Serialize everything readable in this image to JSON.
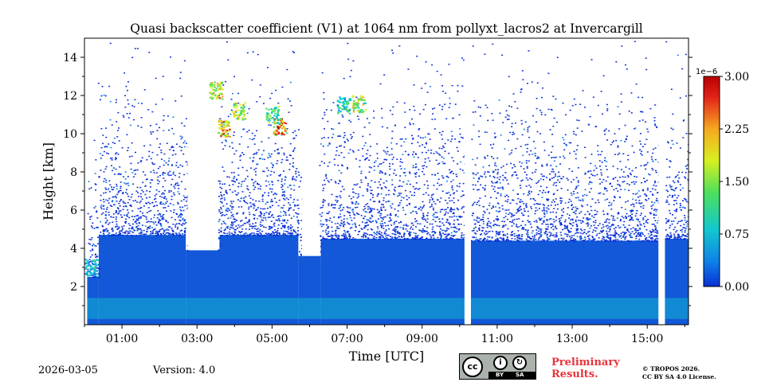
{
  "chart_data": {
    "type": "heatmap",
    "title": "Quasi backscatter coefficient (V1) at 1064 nm from pollyxt_lacros2 at Invercargill",
    "xlabel": "Time [UTC]",
    "ylabel": "Height [km]",
    "xlim": [
      0,
      16.1
    ],
    "ylim": [
      0,
      15
    ],
    "x_ticks": [
      {
        "value": 1,
        "label": "01:00"
      },
      {
        "value": 3,
        "label": "03:00"
      },
      {
        "value": 5,
        "label": "05:00"
      },
      {
        "value": 7,
        "label": "07:00"
      },
      {
        "value": 9,
        "label": "09:00"
      },
      {
        "value": 11,
        "label": "11:00"
      },
      {
        "value": 13,
        "label": "13:00"
      },
      {
        "value": 15,
        "label": "15:00"
      }
    ],
    "y_ticks": [
      {
        "value": 2,
        "label": "2"
      },
      {
        "value": 4,
        "label": "4"
      },
      {
        "value": 6,
        "label": "6"
      },
      {
        "value": 8,
        "label": "8"
      },
      {
        "value": 10,
        "label": "10"
      },
      {
        "value": 12,
        "label": "12"
      },
      {
        "value": 14,
        "label": "14"
      }
    ],
    "colorbar": {
      "min": 0.0,
      "max": 3.0,
      "exponent_label": "1e−6",
      "ticks": [
        {
          "value": 0.0,
          "label": "0.00"
        },
        {
          "value": 0.75,
          "label": "0.75"
        },
        {
          "value": 1.5,
          "label": "1.50"
        },
        {
          "value": 2.25,
          "label": "2.25"
        },
        {
          "value": 3.0,
          "label": "3.00"
        }
      ],
      "colors": [
        "#0a2fd6",
        "#0f82e6",
        "#12c7cf",
        "#4fe05a",
        "#d8f020",
        "#f5a820",
        "#e3231a",
        "#b80000"
      ]
    },
    "gaps_utc_hours": [
      [
        0,
        0.07
      ],
      [
        10.13,
        10.3
      ],
      [
        15.3,
        15.47
      ]
    ],
    "layer_tops_km": [
      {
        "from": 0.07,
        "to": 0.38,
        "top": 2.5
      },
      {
        "from": 0.38,
        "to": 2.7,
        "top": 4.7
      },
      {
        "from": 2.7,
        "to": 3.6,
        "top": 3.9
      },
      {
        "from": 3.6,
        "to": 5.7,
        "top": 4.7
      },
      {
        "from": 5.7,
        "to": 6.3,
        "top": 3.6
      },
      {
        "from": 6.3,
        "to": 10.13,
        "top": 4.5
      },
      {
        "from": 10.3,
        "to": 15.3,
        "top": 4.4
      },
      {
        "from": 15.47,
        "to": 16.1,
        "top": 4.5
      }
    ],
    "cloud_blanks": [
      {
        "from": 2.75,
        "to": 3.55,
        "bottom": 3.9
      },
      {
        "from": 5.8,
        "to": 6.25,
        "bottom": 3.6
      }
    ],
    "cirrus_patches": [
      {
        "t": 3.7,
        "h": 10.3,
        "value": 2.3
      },
      {
        "t": 4.1,
        "h": 11.2,
        "value": 1.9
      },
      {
        "t": 5.2,
        "h": 10.4,
        "value": 2.6
      },
      {
        "t": 5.0,
        "h": 11.0,
        "value": 1.4
      },
      {
        "t": 7.3,
        "h": 11.6,
        "value": 2.0
      },
      {
        "t": 6.9,
        "h": 11.5,
        "value": 1.2
      },
      {
        "t": 0.15,
        "h": 3.0,
        "value": 1.0
      },
      {
        "t": 3.5,
        "h": 12.3,
        "value": 2.2
      }
    ],
    "enhanced_near_surface": {
      "h_from": 0.3,
      "h_to": 1.4,
      "value": 0.8
    }
  },
  "footer": {
    "date": "2026-03-05",
    "version": "Version: 4.0",
    "preliminary_line1": "Preliminary",
    "preliminary_line2": "Results.",
    "copyright_line1": "© TROPOS 2026.",
    "copyright_line2": "CC BY SA 4.0 License.",
    "license_badge": {
      "cc": "cc",
      "by": "BY",
      "sa": "SA"
    }
  }
}
